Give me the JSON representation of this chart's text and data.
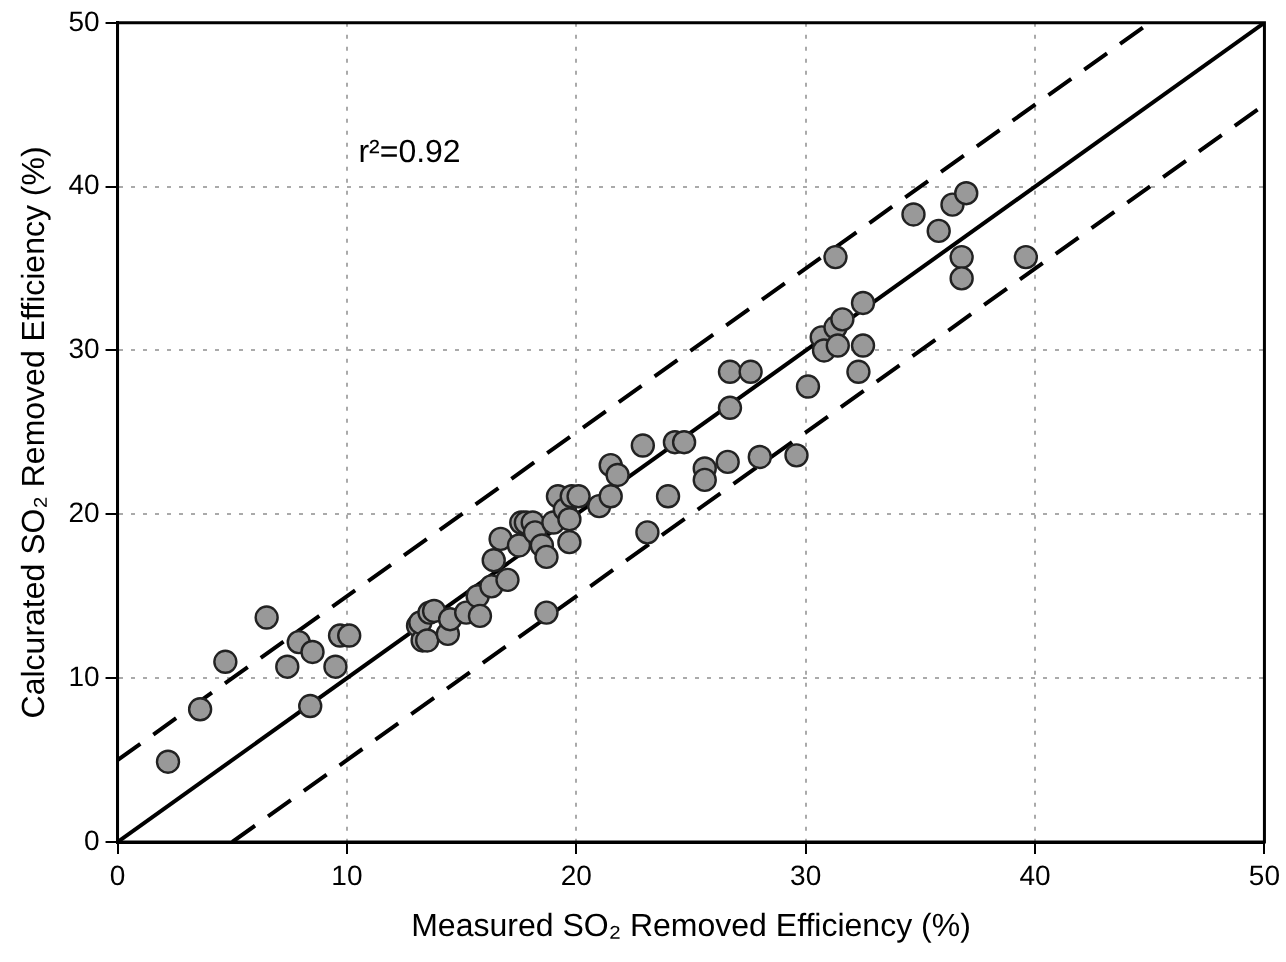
{
  "chart_data": {
    "type": "scatter",
    "xlabel": "Measured SO₂ Removed Efficiency (%)",
    "ylabel": "Calcurated SO₂ Removed Efficiency (%)",
    "xlim": [
      0,
      50
    ],
    "ylim": [
      0,
      50
    ],
    "xticks": [
      0,
      10,
      20,
      30,
      40,
      50
    ],
    "yticks": [
      0,
      10,
      20,
      30,
      40,
      50
    ],
    "grid": true,
    "legend": false,
    "annotations": [
      "r²=0.92"
    ],
    "series": [
      {
        "color": "#999999",
        "marker": "circle",
        "x": [
          2.2,
          3.6,
          4.7,
          6.5,
          7.4,
          7.9,
          8.4,
          8.5,
          9.5,
          9.7,
          10.1,
          13.1,
          13.3,
          13.2,
          13.5,
          13.6,
          13.8,
          14.4,
          14.5,
          15.2,
          15.7,
          15.8,
          16.3,
          16.4,
          16.7,
          17.0,
          17.5,
          17.6,
          17.8,
          18.1,
          18.2,
          18.5,
          18.7,
          18.7,
          19.0,
          19.2,
          19.5,
          19.7,
          19.7,
          19.8,
          20.1,
          21.0,
          21.5,
          21.5,
          21.8,
          22.9,
          23.1,
          24.0,
          24.3,
          24.7,
          25.6,
          25.6,
          26.6,
          26.7,
          26.7,
          27.6,
          28.0,
          29.6,
          30.1,
          30.7,
          30.8,
          31.3,
          31.3,
          31.4,
          31.6,
          32.3,
          32.5,
          32.5,
          34.7,
          35.8,
          36.4,
          36.8,
          36.8,
          37.0,
          39.6
        ],
        "values": [
          4.9,
          8.1,
          11.0,
          13.7,
          10.7,
          12.2,
          8.3,
          11.6,
          10.7,
          12.6,
          12.6,
          13.2,
          12.3,
          13.4,
          12.3,
          14.0,
          14.1,
          12.7,
          13.6,
          14.0,
          15.0,
          13.8,
          15.6,
          17.2,
          18.5,
          16.0,
          18.1,
          19.5,
          19.5,
          19.5,
          18.9,
          18.1,
          17.4,
          14.0,
          19.5,
          21.1,
          20.3,
          19.7,
          18.3,
          21.1,
          21.1,
          20.5,
          23.0,
          21.1,
          22.4,
          24.2,
          18.9,
          21.1,
          24.4,
          24.4,
          22.8,
          22.1,
          23.2,
          28.7,
          26.5,
          28.7,
          23.5,
          23.6,
          27.8,
          30.8,
          30.0,
          35.7,
          31.4,
          30.3,
          31.9,
          28.7,
          32.9,
          30.3,
          38.3,
          37.3,
          38.9,
          35.7,
          34.4,
          39.6,
          35.7
        ]
      },
      {
        "type": "line",
        "color": "#000000",
        "line_style": "solid",
        "x": [
          0,
          50
        ],
        "values": [
          0,
          50
        ]
      },
      {
        "type": "line",
        "color": "#000000",
        "line_style": "dashed",
        "x": [
          0,
          45
        ],
        "values": [
          5,
          50
        ]
      },
      {
        "type": "line",
        "color": "#000000",
        "line_style": "dashed",
        "x": [
          5,
          50
        ],
        "values": [
          0,
          45
        ]
      }
    ]
  }
}
